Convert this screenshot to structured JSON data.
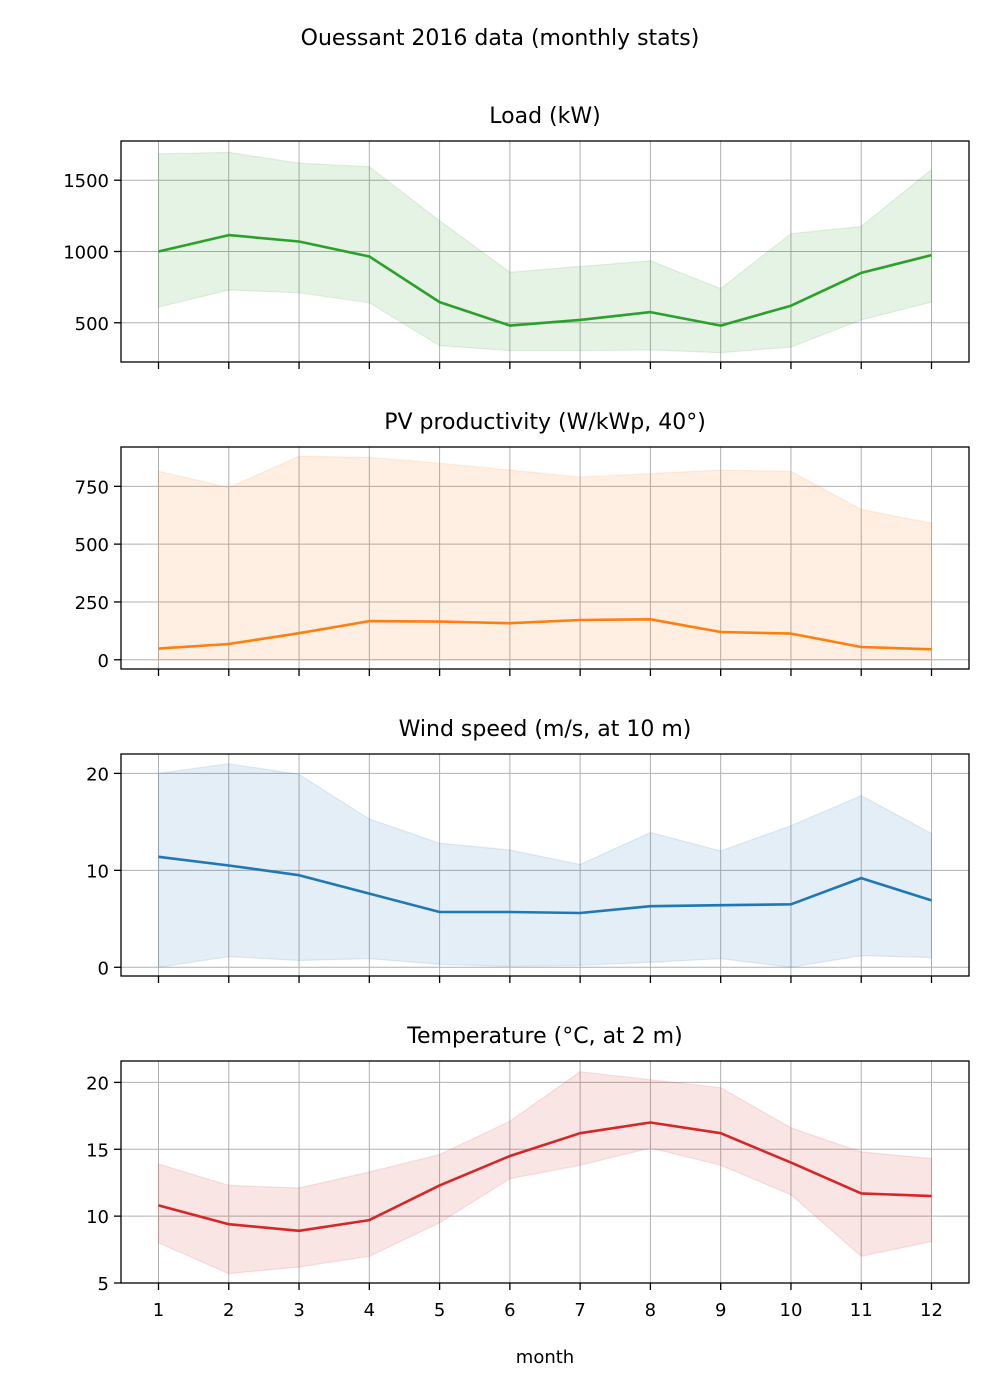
{
  "figure": {
    "suptitle": "Ouessant 2016 data (monthly stats)",
    "xlabel": "month"
  },
  "chart_data": [
    {
      "type": "line",
      "title": "Load (kW)",
      "color": "#2ca02c",
      "x": [
        1,
        2,
        3,
        4,
        5,
        6,
        7,
        8,
        9,
        10,
        11,
        12
      ],
      "ylim": [
        225,
        1775
      ],
      "yticks": [
        500,
        1000,
        1500
      ],
      "grid": true,
      "series": [
        {
          "stat": "mean",
          "values": [
            1000,
            1115,
            1070,
            965,
            645,
            480,
            520,
            575,
            480,
            620,
            850,
            975
          ]
        },
        {
          "stat": "min",
          "values": [
            610,
            730,
            710,
            640,
            340,
            305,
            305,
            310,
            290,
            330,
            520,
            645
          ]
        },
        {
          "stat": "max",
          "values": [
            1685,
            1695,
            1620,
            1595,
            1215,
            855,
            895,
            935,
            740,
            1125,
            1175,
            1575
          ]
        }
      ]
    },
    {
      "type": "line",
      "title": "PV productivity (W/kWp, 40°)",
      "color": "#ff7f0e",
      "x": [
        1,
        2,
        3,
        4,
        5,
        6,
        7,
        8,
        9,
        10,
        11,
        12
      ],
      "ylim": [
        -40,
        920
      ],
      "yticks": [
        0,
        250,
        500,
        750
      ],
      "grid": true,
      "series": [
        {
          "stat": "mean",
          "values": [
            48,
            68,
            115,
            167,
            165,
            158,
            172,
            175,
            120,
            113,
            55,
            45
          ]
        },
        {
          "stat": "min",
          "values": [
            0,
            0,
            0,
            0,
            0,
            0,
            0,
            0,
            0,
            0,
            0,
            0
          ]
        },
        {
          "stat": "max",
          "values": [
            815,
            745,
            880,
            875,
            850,
            820,
            790,
            805,
            820,
            815,
            650,
            590
          ]
        }
      ]
    },
    {
      "type": "line",
      "title": "Wind speed (m/s, at 10 m)",
      "color": "#1f77b4",
      "x": [
        1,
        2,
        3,
        4,
        5,
        6,
        7,
        8,
        9,
        10,
        11,
        12
      ],
      "ylim": [
        -0.9,
        22
      ],
      "yticks": [
        0,
        10,
        20
      ],
      "grid": true,
      "series": [
        {
          "stat": "mean",
          "values": [
            11.4,
            10.5,
            9.5,
            7.6,
            5.7,
            5.7,
            5.6,
            6.3,
            6.4,
            6.5,
            9.2,
            6.9
          ]
        },
        {
          "stat": "min",
          "values": [
            0.0,
            1.1,
            0.7,
            0.9,
            0.3,
            0.1,
            0.2,
            0.5,
            0.9,
            0.0,
            1.2,
            1.0
          ]
        },
        {
          "stat": "max",
          "values": [
            20.0,
            21.0,
            19.9,
            15.3,
            12.8,
            12.1,
            10.6,
            13.9,
            12.0,
            14.6,
            17.7,
            13.8
          ]
        }
      ]
    },
    {
      "type": "line",
      "title": "Temperature (°C, at 2 m)",
      "color": "#d62728",
      "x": [
        1,
        2,
        3,
        4,
        5,
        6,
        7,
        8,
        9,
        10,
        11,
        12
      ],
      "ylim": [
        5,
        21.6
      ],
      "yticks": [
        5,
        10,
        15,
        20
      ],
      "grid": true,
      "series": [
        {
          "stat": "mean",
          "values": [
            10.8,
            9.4,
            8.9,
            9.7,
            12.3,
            14.5,
            16.2,
            17.0,
            16.2,
            14.0,
            11.7,
            11.5
          ]
        },
        {
          "stat": "min",
          "values": [
            8.0,
            5.7,
            6.2,
            7.0,
            9.5,
            12.8,
            13.8,
            15.1,
            13.8,
            11.6,
            7.0,
            8.1
          ]
        },
        {
          "stat": "max",
          "values": [
            13.9,
            12.3,
            12.1,
            13.3,
            14.6,
            17.1,
            20.8,
            20.2,
            19.6,
            16.6,
            14.8,
            14.3
          ]
        }
      ]
    }
  ]
}
